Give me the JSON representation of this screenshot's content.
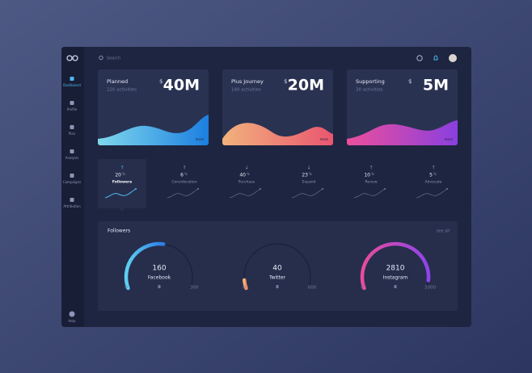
{
  "sidebar": {
    "items": [
      "Dashboard",
      "Profile",
      "Plan",
      "Analysis",
      "Campaigns",
      "Attribution"
    ],
    "help": "Help"
  },
  "topbar": {
    "search": "Search"
  },
  "cards": [
    {
      "title": "Planned",
      "subtitle": "220 activities",
      "currency": "$",
      "amount": "40M",
      "link": "more"
    },
    {
      "title": "Plus Journey",
      "subtitle": "140 activities",
      "currency": "$",
      "amount": "20M",
      "link": "more"
    },
    {
      "title": "Supporting",
      "subtitle": "30 activities",
      "currency": "$",
      "amount": "5M",
      "link": "more"
    }
  ],
  "stages": [
    {
      "arrow": "↑",
      "value": "20",
      "unit": "%",
      "label": "Followers"
    },
    {
      "arrow": "↑",
      "value": "6",
      "unit": "%",
      "label": "Consideration"
    },
    {
      "arrow": "↓",
      "value": "40",
      "unit": "%",
      "label": "Purchase"
    },
    {
      "arrow": "↓",
      "value": "23",
      "unit": "%",
      "label": "Expand"
    },
    {
      "arrow": "↑",
      "value": "10",
      "unit": "%",
      "label": "Renew"
    },
    {
      "arrow": "↑",
      "value": "5",
      "unit": "%",
      "label": "Advocate"
    }
  ],
  "followers": {
    "title": "Followers",
    "link": "see all",
    "gauges": [
      {
        "name": "Facebook",
        "value": 160,
        "min": 0,
        "max": 300
      },
      {
        "name": "Twitter",
        "value": 40,
        "min": 0,
        "max": 600
      },
      {
        "name": "Instagram",
        "value": 2810,
        "min": 0,
        "max": 3000
      }
    ]
  }
}
